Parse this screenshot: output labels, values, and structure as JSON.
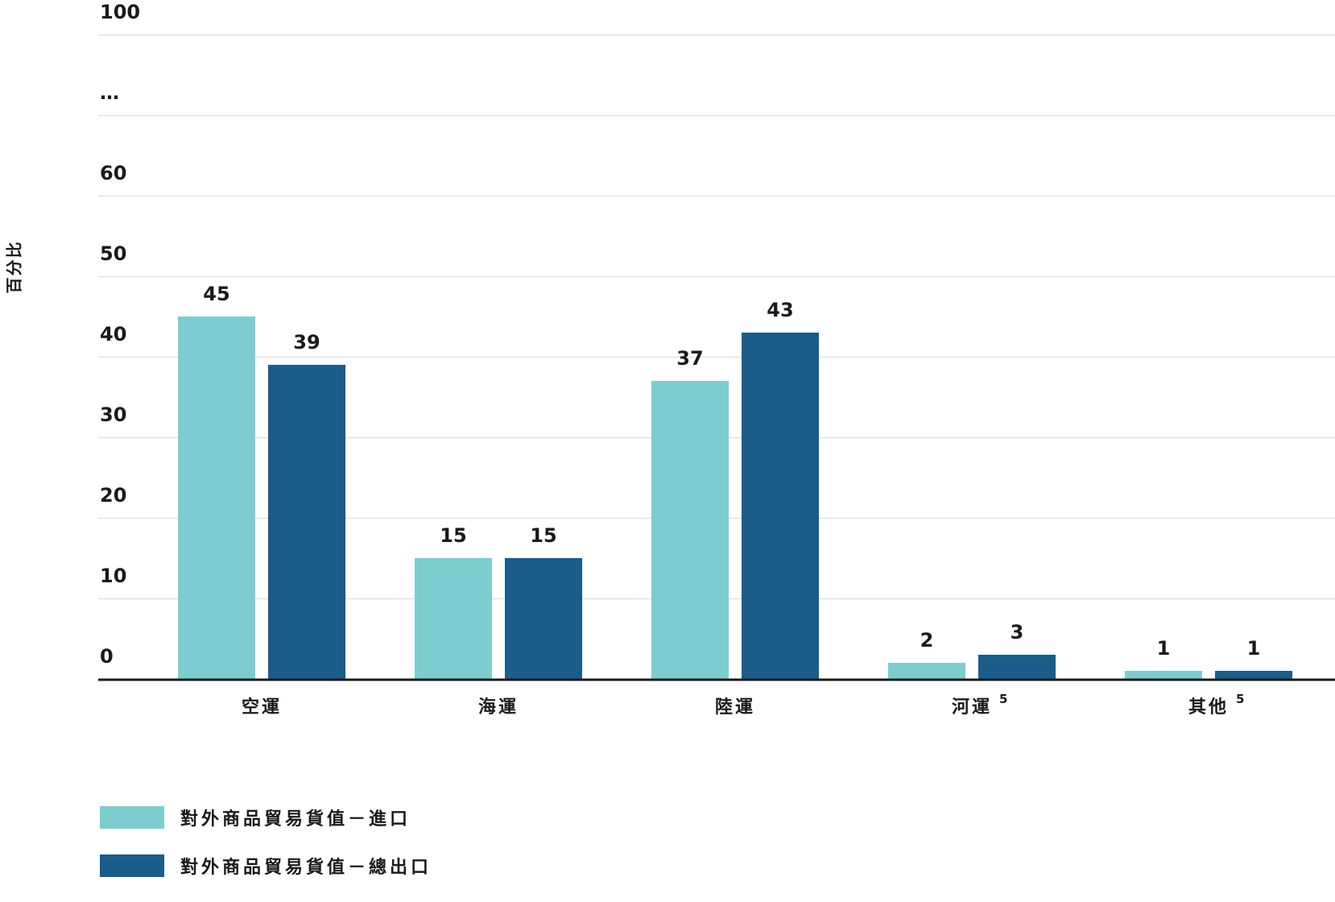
{
  "chart_data": {
    "type": "bar",
    "ylabel": "百分比",
    "xlabel": "",
    "y_ticks": [
      "0",
      "10",
      "20",
      "30",
      "40",
      "50",
      "60",
      "…",
      "100"
    ],
    "categories": [
      {
        "label": "空運",
        "sup": ""
      },
      {
        "label": "海運",
        "sup": ""
      },
      {
        "label": "陸運",
        "sup": ""
      },
      {
        "label": "河運",
        "sup": "5"
      },
      {
        "label": "其他",
        "sup": "5"
      }
    ],
    "series": [
      {
        "name": "對外商品貿易貨值－進口",
        "color": "#7ccdd0",
        "values": [
          45,
          15,
          37,
          2,
          1
        ]
      },
      {
        "name": "對外商品貿易貨值－總出口",
        "color": "#1a5c8a",
        "values": [
          39,
          15,
          43,
          3,
          1
        ]
      }
    ],
    "ylim": [
      0,
      100
    ],
    "axis_break": true,
    "grid": true,
    "legend_position": "bottom-left"
  }
}
